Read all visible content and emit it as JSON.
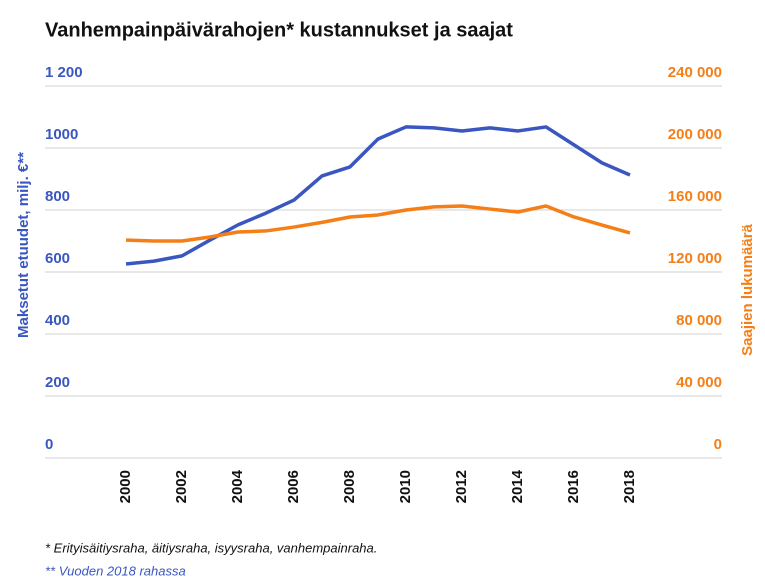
{
  "chart_data": {
    "type": "line",
    "title": "Vanhempainpäivärahojen* kustannukset ja saajat",
    "y_label": "Maksetut etuudet, milj. €**",
    "y2_label": "Saajien lukumäärä",
    "x": [
      2000,
      2001,
      2002,
      2003,
      2004,
      2005,
      2006,
      2007,
      2008,
      2009,
      2010,
      2011,
      2012,
      2013,
      2014,
      2015,
      2016,
      2017,
      2018
    ],
    "xlim": [
      2000,
      2018
    ],
    "xticks": [
      2000,
      2002,
      2004,
      2006,
      2008,
      2010,
      2012,
      2014,
      2016,
      2018
    ],
    "ylim": [
      0,
      1200
    ],
    "yticks": [
      0,
      200,
      400,
      600,
      800,
      1000,
      {
        "value": 1200,
        "label": "1 200"
      }
    ],
    "y2lim": [
      0,
      240000
    ],
    "y2ticks": [
      0,
      {
        "value": 40000,
        "label": "40 000"
      },
      {
        "value": 80000,
        "label": "80 000"
      },
      {
        "value": 120000,
        "label": "120 000"
      },
      {
        "value": 160000,
        "label": "160 000"
      },
      {
        "value": 200000,
        "label": "200 000"
      },
      {
        "value": 240000,
        "label": "240 000"
      }
    ],
    "grid": true,
    "series": [
      {
        "name": "Maksetut etuudet, milj. €**",
        "color": "#3a56c0",
        "axis": "y",
        "values": [
          626,
          635,
          652,
          703,
          752,
          790,
          832,
          910,
          939,
          1029,
          1068,
          1065,
          1055,
          1065,
          1055,
          1068,
          1010,
          952,
          913
        ]
      },
      {
        "name": "Saajien lukumäärä",
        "color": "#f57f17",
        "axis": "y2",
        "values": [
          140600,
          140000,
          140000,
          142600,
          145800,
          146500,
          149000,
          152000,
          155500,
          156800,
          160000,
          162000,
          162600,
          160600,
          158700,
          162600,
          155500,
          150300,
          145200
        ]
      }
    ],
    "notes": [
      "* Erityisäitiysraha, äitiysraha, isyysraha, vanhempainraha.",
      "** Vuoden 2018 rahassa"
    ]
  }
}
